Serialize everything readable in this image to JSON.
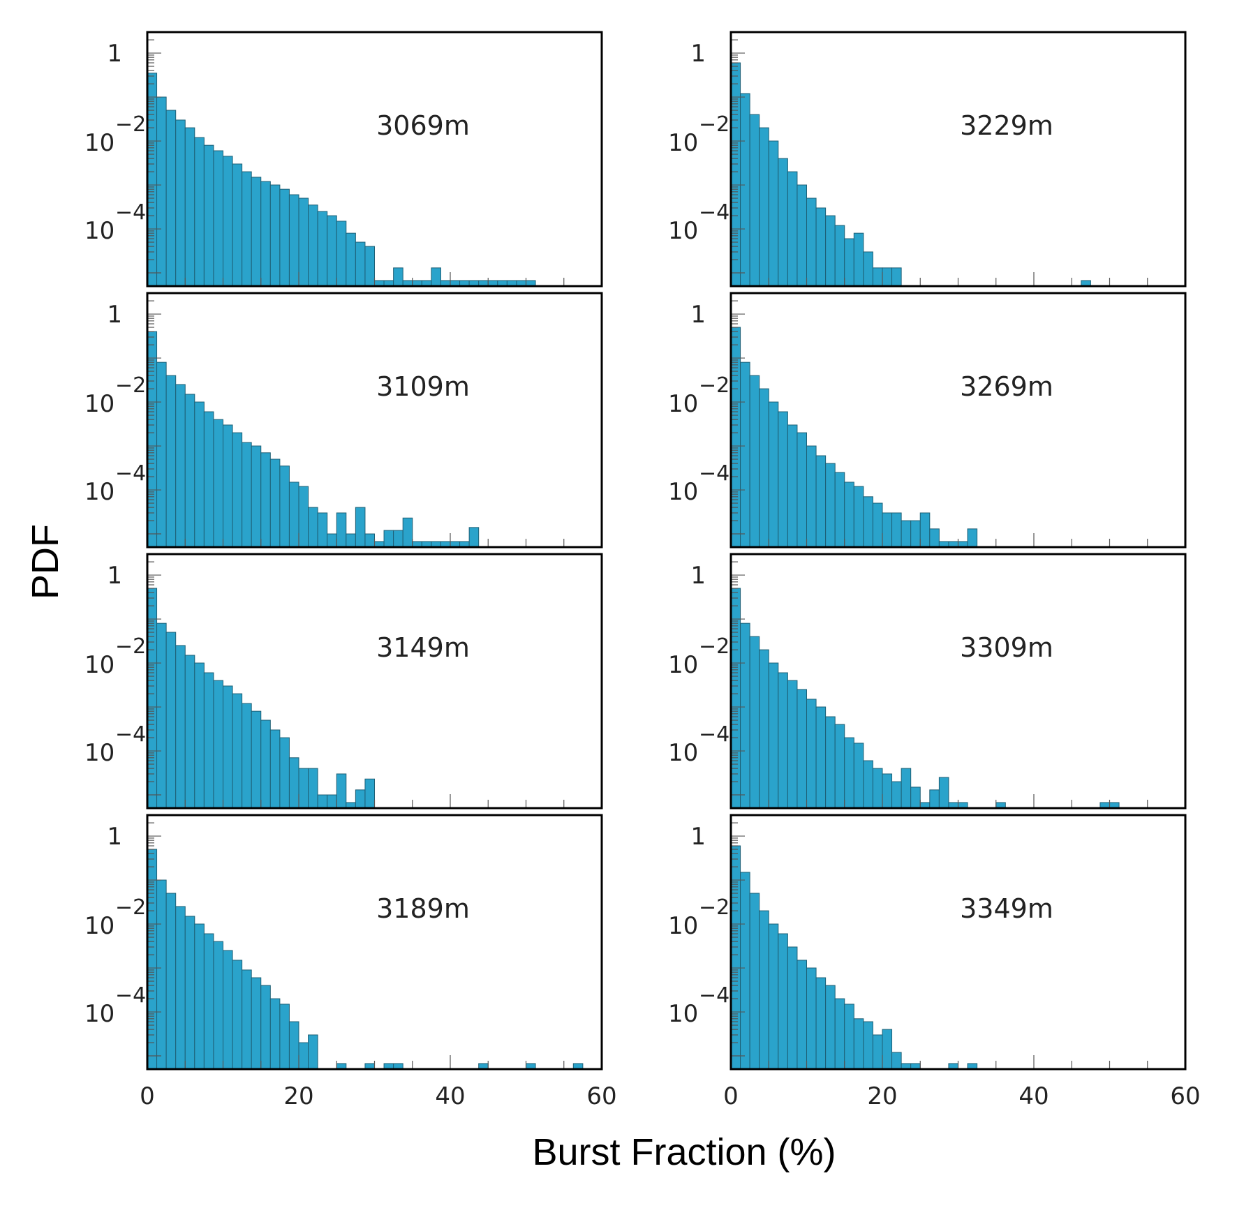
{
  "figure": {
    "ylabel": "PDF",
    "xlabel": "Burst Fraction (%)"
  },
  "colors": {
    "bar_fill": "#2aa3cb",
    "bar_edge": "#1d5f75",
    "frame": "#000000"
  },
  "chart_data": [
    {
      "type": "bar",
      "annotation": "3069m",
      "xlim": [
        0,
        60
      ],
      "ylim": [
        5e-06,
        3
      ],
      "yscale": "log",
      "xticks": [
        "0",
        "20",
        "40",
        "60"
      ],
      "yticks": [
        "1",
        "10^-2",
        "10^-4"
      ],
      "bin_width": 1.25,
      "x": [
        0,
        1.25,
        2.5,
        3.75,
        5,
        6.25,
        7.5,
        8.75,
        10,
        11.25,
        12.5,
        13.75,
        15,
        16.25,
        17.5,
        18.75,
        20,
        21.25,
        22.5,
        23.75,
        25,
        26.25,
        27.5,
        28.75,
        30,
        31.25,
        32.5,
        33.75,
        35,
        36.25,
        37.5,
        38.75,
        40,
        41.25,
        42.5,
        43.75,
        45,
        46.25,
        47.5,
        48.75,
        50
      ],
      "values": [
        0.35,
        0.1,
        0.05,
        0.03,
        0.02,
        0.012,
        0.008,
        0.006,
        0.0045,
        0.003,
        0.002,
        0.0015,
        0.0012,
        0.001,
        0.0008,
        0.0006,
        0.0005,
        0.00035,
        0.00025,
        0.0002,
        0.00015,
        8e-05,
        5e-05,
        4e-05,
        6.7e-06,
        6.7e-06,
        1.3e-05,
        6.7e-06,
        6.7e-06,
        6.7e-06,
        1.3e-05,
        6.7e-06,
        6.7e-06,
        6.7e-06,
        6.7e-06,
        6.7e-06,
        6.7e-06,
        6.7e-06,
        6.7e-06,
        6.7e-06,
        6.7e-06
      ]
    },
    {
      "type": "bar",
      "annotation": "3229m",
      "xlim": [
        0,
        60
      ],
      "ylim": [
        5e-06,
        3
      ],
      "yscale": "log",
      "xticks": [
        "0",
        "20",
        "40",
        "60"
      ],
      "yticks": [
        "1",
        "10^-2",
        "10^-4"
      ],
      "bin_width": 1.25,
      "x": [
        0,
        1.25,
        2.5,
        3.75,
        5,
        6.25,
        7.5,
        8.75,
        10,
        11.25,
        12.5,
        13.75,
        15,
        16.25,
        17.5,
        18.75,
        20,
        21.25,
        46.25
      ],
      "values": [
        0.6,
        0.12,
        0.04,
        0.02,
        0.01,
        0.004,
        0.002,
        0.001,
        0.0005,
        0.0003,
        0.0002,
        0.00012,
        6e-05,
        8e-05,
        3e-05,
        1.3e-05,
        1.3e-05,
        1.3e-05,
        6.7e-06
      ]
    },
    {
      "type": "bar",
      "annotation": "3109m",
      "xlim": [
        0,
        60
      ],
      "ylim": [
        5e-06,
        3
      ],
      "yscale": "log",
      "xticks": [
        "0",
        "20",
        "40",
        "60"
      ],
      "yticks": [
        "1",
        "10^-2",
        "10^-4"
      ],
      "bin_width": 1.25,
      "x": [
        0,
        1.25,
        2.5,
        3.75,
        5,
        6.25,
        7.5,
        8.75,
        10,
        11.25,
        12.5,
        13.75,
        15,
        16.25,
        17.5,
        18.75,
        20,
        21.25,
        22.5,
        23.75,
        25,
        26.25,
        27.5,
        28.75,
        30,
        31.25,
        32.5,
        33.75,
        35,
        36.25,
        37.5,
        38.75,
        40,
        41.25,
        42.5
      ],
      "values": [
        0.4,
        0.08,
        0.04,
        0.025,
        0.015,
        0.01,
        0.006,
        0.004,
        0.003,
        0.002,
        0.0012,
        0.001,
        0.0007,
        0.0005,
        0.00035,
        0.00015,
        0.00012,
        4e-05,
        3e-05,
        1e-05,
        3e-05,
        1e-05,
        4e-05,
        1e-05,
        6.7e-06,
        1.2e-05,
        1.2e-05,
        2.3e-05,
        6.7e-06,
        6.7e-06,
        6.7e-06,
        6.7e-06,
        6.7e-06,
        6.7e-06,
        1.4e-05
      ]
    },
    {
      "type": "bar",
      "annotation": "3269m",
      "xlim": [
        0,
        60
      ],
      "ylim": [
        5e-06,
        3
      ],
      "yscale": "log",
      "xticks": [
        "0",
        "20",
        "40",
        "60"
      ],
      "yticks": [
        "1",
        "10^-2",
        "10^-4"
      ],
      "bin_width": 1.25,
      "x": [
        0,
        1.25,
        2.5,
        3.75,
        5,
        6.25,
        7.5,
        8.75,
        10,
        11.25,
        12.5,
        13.75,
        15,
        16.25,
        17.5,
        18.75,
        20,
        21.25,
        22.5,
        23.75,
        25,
        26.25,
        27.5,
        28.75,
        30,
        31.25
      ],
      "values": [
        0.5,
        0.08,
        0.04,
        0.02,
        0.01,
        0.006,
        0.003,
        0.002,
        0.001,
        0.0006,
        0.0004,
        0.00025,
        0.00015,
        0.00012,
        7e-05,
        5e-05,
        3e-05,
        3e-05,
        2e-05,
        2e-05,
        3e-05,
        1.3e-05,
        6.7e-06,
        6.7e-06,
        6.7e-06,
        1.3e-05
      ]
    },
    {
      "type": "bar",
      "annotation": "3149m",
      "xlim": [
        0,
        60
      ],
      "ylim": [
        5e-06,
        3
      ],
      "yscale": "log",
      "xticks": [
        "0",
        "20",
        "40",
        "60"
      ],
      "yticks": [
        "1",
        "10^-2",
        "10^-4"
      ],
      "bin_width": 1.25,
      "x": [
        0,
        1.25,
        2.5,
        3.75,
        5,
        6.25,
        7.5,
        8.75,
        10,
        11.25,
        12.5,
        13.75,
        15,
        16.25,
        17.5,
        18.75,
        20,
        21.25,
        22.5,
        23.75,
        25,
        26.25,
        27.5,
        28.75
      ],
      "values": [
        0.5,
        0.08,
        0.05,
        0.025,
        0.015,
        0.01,
        0.006,
        0.004,
        0.003,
        0.002,
        0.0012,
        0.0008,
        0.0005,
        0.0003,
        0.0002,
        7e-05,
        4e-05,
        4e-05,
        1e-05,
        1e-05,
        3e-05,
        6.7e-06,
        1.3e-05,
        2.3e-05
      ]
    },
    {
      "type": "bar",
      "annotation": "3309m",
      "xlim": [
        0,
        60
      ],
      "ylim": [
        5e-06,
        3
      ],
      "yscale": "log",
      "xticks": [
        "0",
        "20",
        "40",
        "60"
      ],
      "yticks": [
        "1",
        "10^-2",
        "10^-4"
      ],
      "bin_width": 1.25,
      "x": [
        0,
        1.25,
        2.5,
        3.75,
        5,
        6.25,
        7.5,
        8.75,
        10,
        11.25,
        12.5,
        13.75,
        15,
        16.25,
        17.5,
        18.75,
        20,
        21.25,
        22.5,
        23.75,
        25,
        26.25,
        27.5,
        28.75,
        30,
        35,
        48.75,
        50
      ],
      "values": [
        0.5,
        0.08,
        0.04,
        0.02,
        0.01,
        0.006,
        0.004,
        0.0025,
        0.0015,
        0.001,
        0.0006,
        0.0004,
        0.0002,
        0.00015,
        6e-05,
        4e-05,
        3e-05,
        2e-05,
        4e-05,
        1.5e-05,
        6.7e-06,
        1.3e-05,
        2.5e-05,
        6.7e-06,
        6.7e-06,
        6.7e-06,
        6.7e-06,
        6.7e-06
      ]
    },
    {
      "type": "bar",
      "annotation": "3189m",
      "xlim": [
        0,
        60
      ],
      "ylim": [
        5e-06,
        3
      ],
      "yscale": "log",
      "xticks": [
        "0",
        "20",
        "40",
        "60"
      ],
      "yticks": [
        "1",
        "10^-2",
        "10^-4"
      ],
      "bin_width": 1.25,
      "x": [
        0,
        1.25,
        2.5,
        3.75,
        5,
        6.25,
        7.5,
        8.75,
        10,
        11.25,
        12.5,
        13.75,
        15,
        16.25,
        17.5,
        18.75,
        20,
        21.25,
        25,
        28.75,
        31.25,
        32.5,
        43.75,
        50,
        56.25
      ],
      "values": [
        0.5,
        0.1,
        0.05,
        0.025,
        0.015,
        0.01,
        0.006,
        0.004,
        0.0025,
        0.0015,
        0.0009,
        0.0006,
        0.0004,
        0.0002,
        0.00015,
        6e-05,
        2e-05,
        3e-05,
        6.7e-06,
        6.7e-06,
        6.7e-06,
        6.7e-06,
        6.7e-06,
        6.7e-06,
        6.7e-06
      ]
    },
    {
      "type": "bar",
      "annotation": "3349m",
      "xlim": [
        0,
        60
      ],
      "ylim": [
        5e-06,
        3
      ],
      "yscale": "log",
      "xticks": [
        "0",
        "20",
        "40",
        "60"
      ],
      "yticks": [
        "1",
        "10^-2",
        "10^-4"
      ],
      "bin_width": 1.25,
      "x": [
        0,
        1.25,
        2.5,
        3.75,
        5,
        6.25,
        7.5,
        8.75,
        10,
        11.25,
        12.5,
        13.75,
        15,
        16.25,
        17.5,
        18.75,
        20,
        21.25,
        22.5,
        23.75,
        28.75,
        31.25
      ],
      "values": [
        0.6,
        0.15,
        0.05,
        0.02,
        0.01,
        0.006,
        0.003,
        0.0015,
        0.001,
        0.0006,
        0.0004,
        0.0002,
        0.00015,
        7e-05,
        6e-05,
        3e-05,
        4e-05,
        1.2e-05,
        6.7e-06,
        6.7e-06,
        6.7e-06,
        6.7e-06
      ]
    }
  ]
}
